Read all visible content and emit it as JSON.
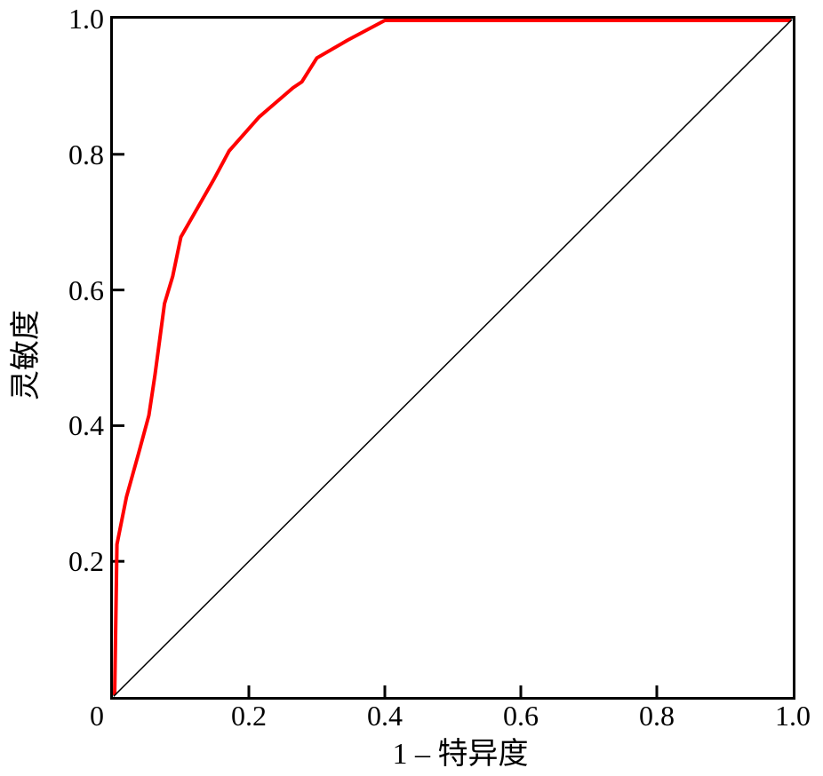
{
  "chart_data": {
    "type": "line",
    "title": "",
    "xlabel": "1 – 特异度",
    "ylabel": "灵敏度",
    "xlim": [
      0,
      1
    ],
    "ylim": [
      0,
      1
    ],
    "grid": false,
    "legend": "none",
    "background_color": "#ffffff",
    "frame_color": "#000000",
    "x_ticks": [
      {
        "value": 0,
        "label": "0"
      },
      {
        "value": 0.2,
        "label": "0.2"
      },
      {
        "value": 0.4,
        "label": "0.4"
      },
      {
        "value": 0.6,
        "label": "0.6"
      },
      {
        "value": 0.8,
        "label": "0.8"
      },
      {
        "value": 1.0,
        "label": "1.0"
      }
    ],
    "y_ticks": [
      {
        "value": 0.2,
        "label": "0.2"
      },
      {
        "value": 0.4,
        "label": "0.4"
      },
      {
        "value": 0.6,
        "label": "0.6"
      },
      {
        "value": 0.8,
        "label": "0.8"
      },
      {
        "value": 1.0,
        "label": "1.0"
      }
    ],
    "series": [
      {
        "name": "roc-curve",
        "color": "#ff0000",
        "stroke_width": 4,
        "points": [
          [
            0,
            0
          ],
          [
            0.006,
            0.225
          ],
          [
            0.02,
            0.295
          ],
          [
            0.038,
            0.36
          ],
          [
            0.053,
            0.415
          ],
          [
            0.062,
            0.475
          ],
          [
            0.076,
            0.58
          ],
          [
            0.088,
            0.62
          ],
          [
            0.1,
            0.678
          ],
          [
            0.148,
            0.762
          ],
          [
            0.171,
            0.805
          ],
          [
            0.215,
            0.855
          ],
          [
            0.265,
            0.898
          ],
          [
            0.278,
            0.907
          ],
          [
            0.3,
            0.942
          ],
          [
            0.345,
            0.968
          ],
          [
            0.4,
            1.0
          ],
          [
            1.0,
            1.0
          ]
        ]
      },
      {
        "name": "reference-diagonal",
        "color": "#000000",
        "stroke_width": 1.5,
        "points": [
          [
            0,
            0
          ],
          [
            1.0,
            1.0
          ]
        ]
      }
    ]
  }
}
